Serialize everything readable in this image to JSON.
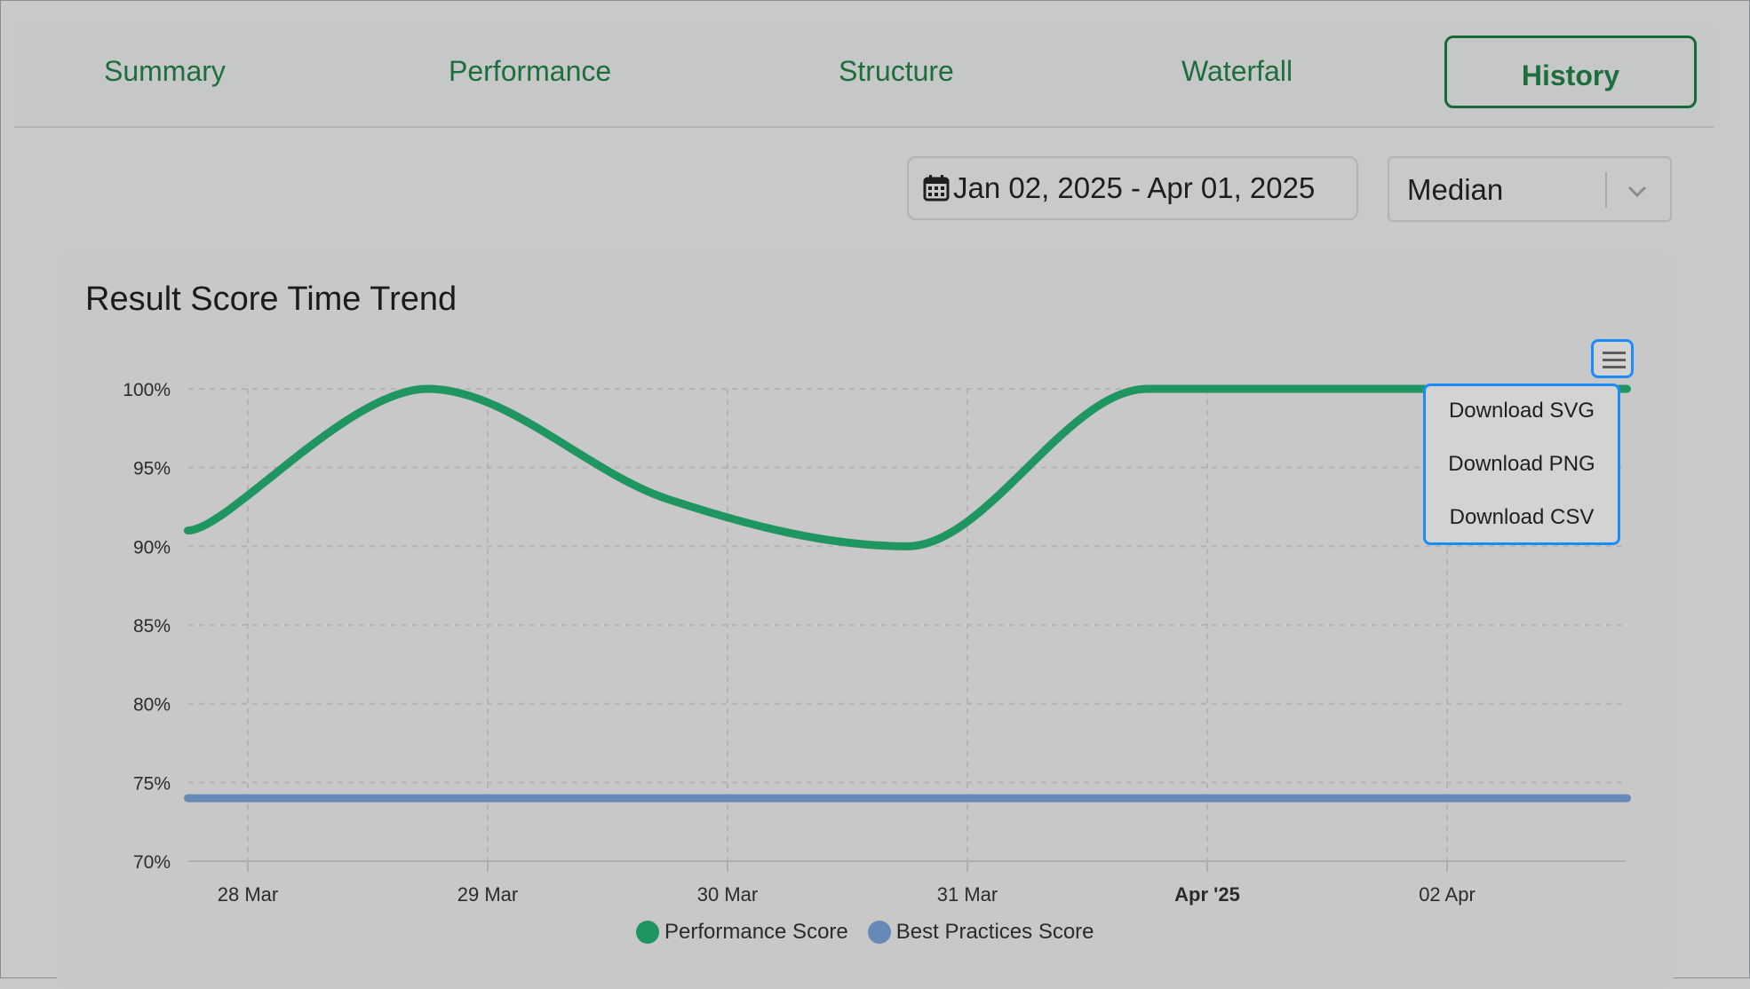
{
  "tabs": [
    {
      "label": "Summary"
    },
    {
      "label": "Performance"
    },
    {
      "label": "Structure"
    },
    {
      "label": "Waterfall"
    },
    {
      "label": "History",
      "active": true
    }
  ],
  "filters": {
    "date_range": "Jan 02, 2025 - Apr 01, 2025",
    "aggregation": "Median"
  },
  "menu": {
    "icon": "hamburger-icon",
    "options": [
      "Download SVG",
      "Download PNG",
      "Download CSV"
    ]
  },
  "colors": {
    "accent": "#1d6e3c",
    "performance": "#1f9560",
    "best_practices": "#6689b8",
    "menu_highlight": "#1a8cff"
  },
  "chart_data": {
    "type": "line",
    "title": "Result Score Time Trend",
    "y_ticks": [
      "100%",
      "95%",
      "90%",
      "85%",
      "80%",
      "75%",
      "70%"
    ],
    "ylim": [
      70,
      100
    ],
    "x_ticks": [
      "28 Mar",
      "29 Mar",
      "30 Mar",
      "31 Mar",
      "Apr '25",
      "02 Apr"
    ],
    "x_ticks_bold": [
      "Apr '25"
    ],
    "x": [
      "27 Mar 18:00",
      "28 Mar 18:00",
      "29 Mar 18:00",
      "30 Mar 18:00",
      "31 Mar 18:00",
      "01 Apr 18:00",
      "02 Apr 18:00"
    ],
    "grid": true,
    "legend_position": "bottom",
    "series": [
      {
        "name": "Performance Score",
        "values": [
          91,
          100,
          93,
          90,
          100,
          100,
          100
        ]
      },
      {
        "name": "Best Practices Score",
        "values": [
          74,
          74,
          74,
          74,
          74,
          74,
          74
        ]
      }
    ]
  }
}
